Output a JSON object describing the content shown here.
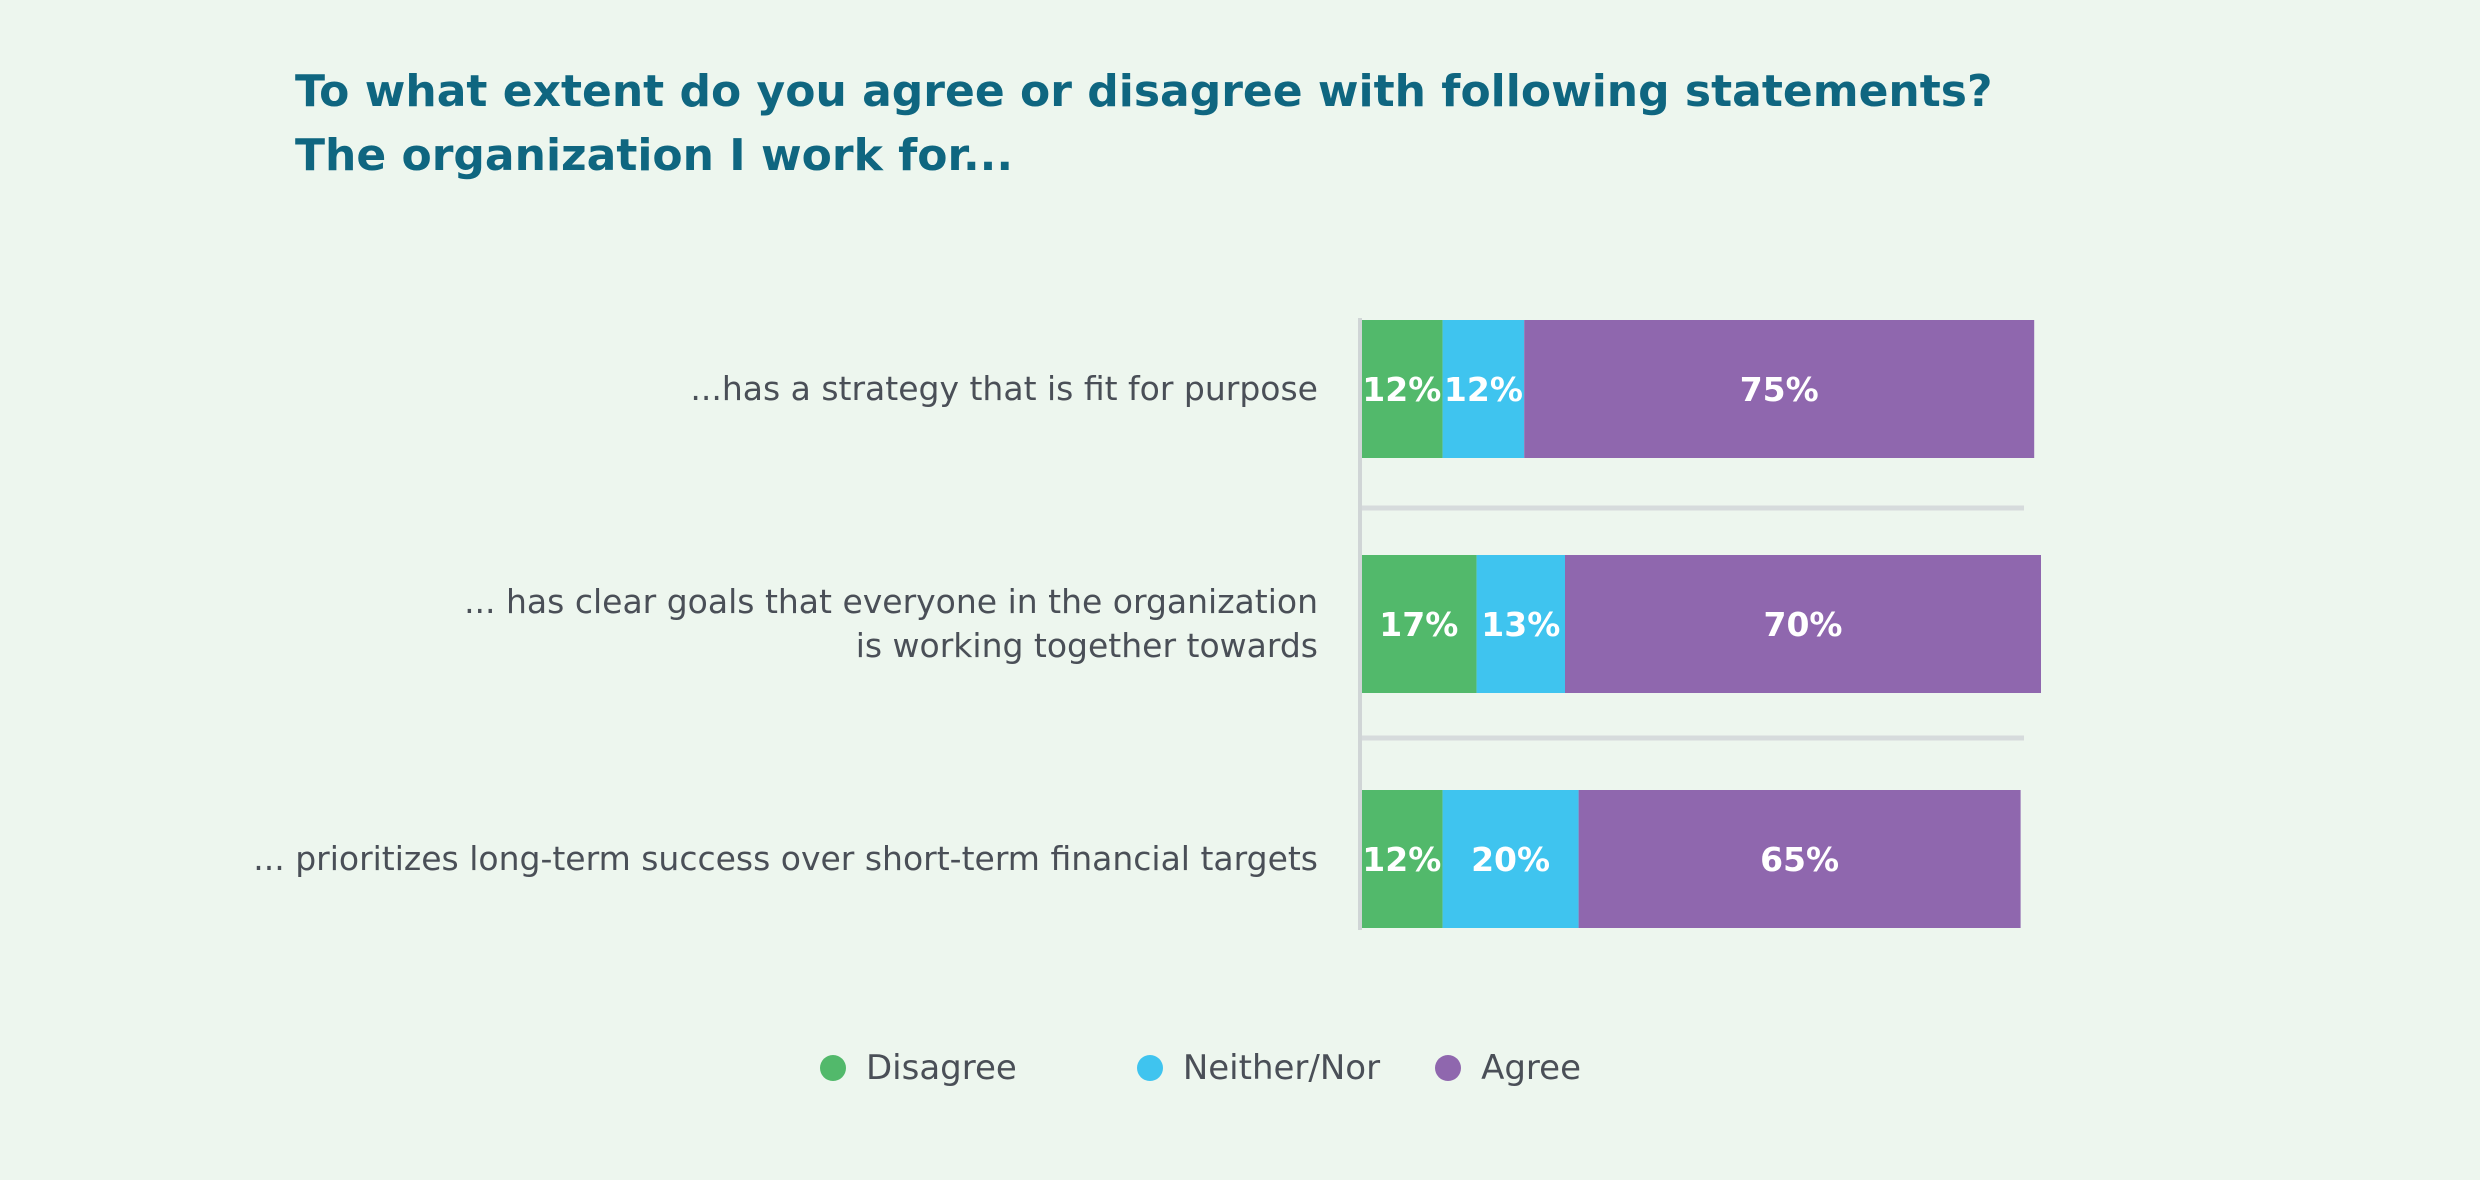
{
  "header": {
    "title_line1": "To what extent do you agree or disagree with following statements?",
    "title_line2": "The organization I work for..."
  },
  "colors": {
    "disagree": "#52b96b",
    "neither": "#3fc4ef",
    "agree": "#8f67ae"
  },
  "chart_data": {
    "type": "bar",
    "orientation": "horizontal",
    "stacked": true,
    "categories": [
      [
        "...has a strategy that is fit for purpose"
      ],
      [
        "... has clear goals that everyone in the organization",
        "is working together towards"
      ],
      [
        "... prioritizes long-term success over short-term financial targets"
      ]
    ],
    "series": [
      {
        "name": "Disagree",
        "values": [
          12,
          17,
          12
        ],
        "labels": [
          "12%",
          "17%",
          "12%"
        ],
        "color": "#52b96b"
      },
      {
        "name": "Neither/Nor",
        "values": [
          12,
          13,
          20
        ],
        "labels": [
          "12%",
          "13%",
          "20%"
        ],
        "color": "#3fc4ef"
      },
      {
        "name": "Agree",
        "values": [
          75,
          70,
          65
        ],
        "labels": [
          "75%",
          "70%",
          "65%"
        ],
        "color": "#8f67ae"
      }
    ],
    "unit": "%",
    "legend_position": "bottom",
    "grid": false
  },
  "legend": [
    {
      "label": "Disagree",
      "color": "#52b96b"
    },
    {
      "label": "Neither/Nor",
      "color": "#3fc4ef"
    },
    {
      "label": "Agree",
      "color": "#8f67ae"
    }
  ]
}
